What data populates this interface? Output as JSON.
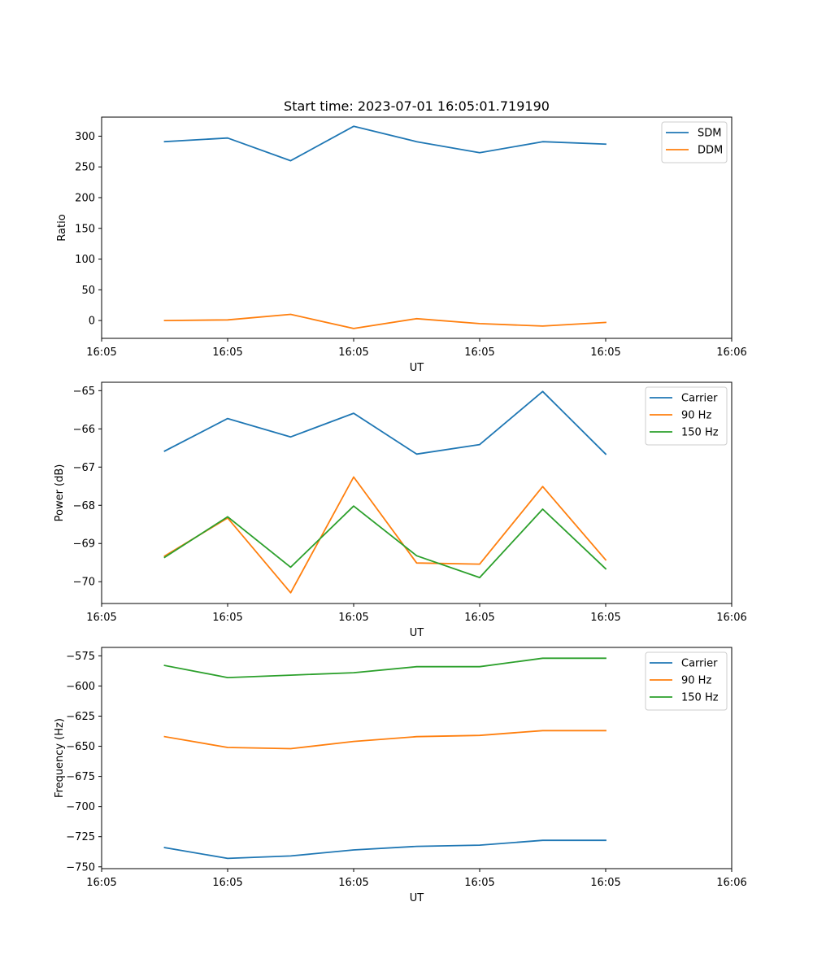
{
  "title": "Start time: 2023-07-01 16:05:01.719190",
  "colors": {
    "c0": "#1f77b4",
    "c1": "#ff7f0e",
    "c2": "#2ca02c"
  },
  "chart_data": [
    {
      "type": "line",
      "xlabel": "UT",
      "ylabel": "Ratio",
      "x": [
        1,
        2,
        3,
        4,
        5,
        6,
        7,
        8
      ],
      "xlim": [
        0,
        10
      ],
      "xticks": [
        0,
        2,
        4,
        6,
        8,
        10
      ],
      "xtick_labels": [
        "16:05",
        "16:05",
        "16:05",
        "16:05",
        "16:05",
        "16:06"
      ],
      "ylim": [
        -29,
        331
      ],
      "yticks": [
        0,
        50,
        100,
        150,
        200,
        250,
        300
      ],
      "legend": "top-right",
      "grid": false,
      "series": [
        {
          "name": "SDM",
          "color": "#1f77b4",
          "values": [
            291,
            297,
            260,
            316,
            291,
            273,
            291,
            287
          ]
        },
        {
          "name": "DDM",
          "color": "#ff7f0e",
          "values": [
            0,
            1,
            10,
            -13,
            3,
            -5,
            -9,
            -3
          ]
        }
      ]
    },
    {
      "type": "line",
      "xlabel": "UT",
      "ylabel": "Power (dB)",
      "x": [
        1,
        2,
        3,
        4,
        5,
        6,
        7,
        8
      ],
      "xlim": [
        0,
        10
      ],
      "xticks": [
        0,
        2,
        4,
        6,
        8,
        10
      ],
      "xtick_labels": [
        "16:05",
        "16:05",
        "16:05",
        "16:05",
        "16:05",
        "16:06"
      ],
      "ylim": [
        -70.57,
        -64.78
      ],
      "yticks": [
        -70,
        -69,
        -68,
        -67,
        -66,
        -65
      ],
      "legend": "top-right",
      "grid": false,
      "series": [
        {
          "name": "Carrier",
          "color": "#1f77b4",
          "values": [
            -66.58,
            -65.73,
            -66.21,
            -65.59,
            -66.66,
            -66.41,
            -65.02,
            -66.66
          ]
        },
        {
          "name": "90 Hz",
          "color": "#ff7f0e",
          "values": [
            -69.33,
            -68.33,
            -70.29,
            -67.26,
            -69.51,
            -69.54,
            -67.51,
            -69.43
          ]
        },
        {
          "name": "150 Hz",
          "color": "#2ca02c",
          "values": [
            -69.36,
            -68.3,
            -69.62,
            -68.02,
            -69.32,
            -69.89,
            -68.1,
            -69.66
          ]
        }
      ]
    },
    {
      "type": "line",
      "xlabel": "UT",
      "ylabel": "Frequency (Hz)",
      "x": [
        1,
        2,
        3,
        4,
        5,
        6,
        7,
        8
      ],
      "xlim": [
        0,
        10
      ],
      "xticks": [
        0,
        2,
        4,
        6,
        8,
        10
      ],
      "xtick_labels": [
        "16:05",
        "16:05",
        "16:05",
        "16:05",
        "16:05",
        "16:06"
      ],
      "ylim": [
        -751.5,
        -568
      ],
      "yticks": [
        -750,
        -725,
        -700,
        -675,
        -650,
        -625,
        -600,
        -575
      ],
      "legend": "top-right",
      "grid": false,
      "series": [
        {
          "name": "Carrier",
          "color": "#1f77b4",
          "values": [
            -734,
            -743,
            -741,
            -736,
            -733,
            -732,
            -728,
            -728
          ]
        },
        {
          "name": "90 Hz",
          "color": "#ff7f0e",
          "values": [
            -642,
            -651,
            -652,
            -646,
            -642,
            -641,
            -637,
            -637
          ]
        },
        {
          "name": "150 Hz",
          "color": "#2ca02c",
          "values": [
            -583,
            -593,
            -591,
            -589,
            -584,
            -584,
            -577,
            -577
          ]
        }
      ]
    }
  ]
}
